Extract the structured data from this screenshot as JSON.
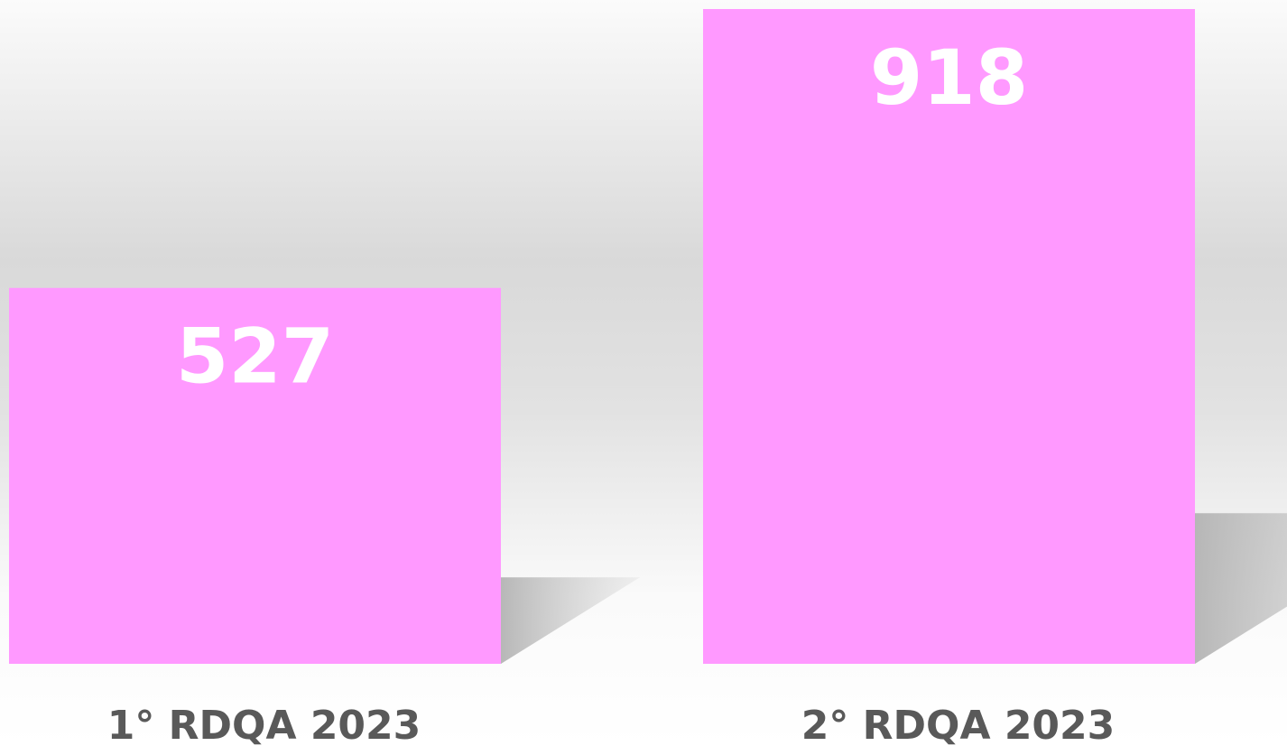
{
  "chart_data": {
    "type": "bar",
    "categories": [
      "1° RDQA 2023",
      "2° RDQA 2023"
    ],
    "values": [
      527,
      918
    ],
    "color": "#ff99ff"
  }
}
